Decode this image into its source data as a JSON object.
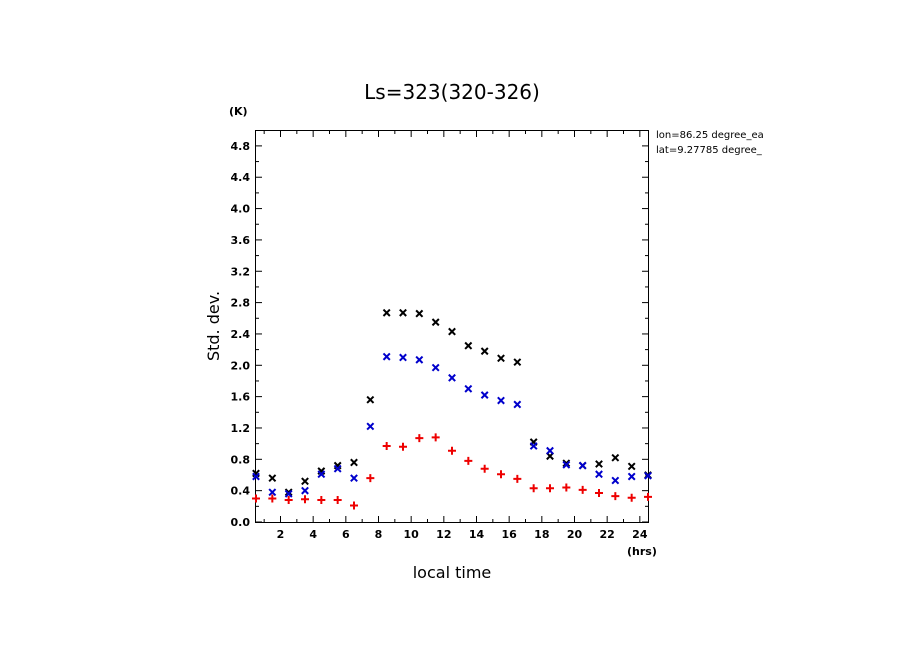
{
  "chart_data": {
    "type": "scatter",
    "title": "Ls=323(320-326)",
    "xlabel": "local time",
    "ylabel": "Std. dev.",
    "x_unit": "(hrs)",
    "y_unit": "(K)",
    "xlim": [
      0.5,
      24.5
    ],
    "ylim": [
      0,
      4.99
    ],
    "x_ticks": [
      2,
      4,
      6,
      8,
      10,
      12,
      14,
      16,
      18,
      20,
      22,
      24
    ],
    "y_ticks": [
      0.0,
      0.4,
      0.8,
      1.2,
      1.6,
      2.0,
      2.4,
      2.8,
      3.2,
      3.6,
      4.0,
      4.4,
      4.8
    ],
    "grid": false,
    "annotations": [
      "lon=86.25 degree_ea",
      "lat=9.27785 degree_"
    ],
    "x": [
      0.5,
      1.5,
      2.5,
      3.5,
      4.5,
      5.5,
      6.5,
      7.5,
      8.5,
      9.5,
      10.5,
      11.5,
      12.5,
      13.5,
      14.5,
      15.5,
      16.5,
      17.5,
      18.5,
      19.5,
      20.5,
      21.5,
      22.5,
      23.5,
      24.5
    ],
    "series": [
      {
        "marker": "x",
        "color": "#000000",
        "values": [
          0.62,
          0.56,
          0.38,
          0.52,
          0.65,
          0.72,
          0.76,
          1.56,
          2.67,
          2.67,
          2.66,
          2.55,
          2.43,
          2.25,
          2.18,
          2.09,
          2.04,
          1.02,
          0.84,
          0.75,
          0.72,
          0.74,
          0.82,
          0.71,
          0.6
        ]
      },
      {
        "marker": "x",
        "color": "#0000cc",
        "values": [
          0.58,
          0.38,
          0.36,
          0.4,
          0.61,
          0.68,
          0.56,
          1.22,
          2.11,
          2.1,
          2.07,
          1.97,
          1.84,
          1.7,
          1.62,
          1.55,
          1.5,
          0.97,
          0.91,
          0.73,
          0.72,
          0.61,
          0.53,
          0.58,
          0.59
        ]
      },
      {
        "marker": "+",
        "color": "#ee0000",
        "values": [
          0.3,
          0.3,
          0.28,
          0.29,
          0.28,
          0.28,
          0.21,
          0.56,
          0.97,
          0.96,
          1.07,
          1.08,
          0.91,
          0.78,
          0.68,
          0.61,
          0.55,
          0.43,
          0.43,
          0.44,
          0.41,
          0.37,
          0.33,
          0.31,
          0.32
        ]
      }
    ]
  }
}
